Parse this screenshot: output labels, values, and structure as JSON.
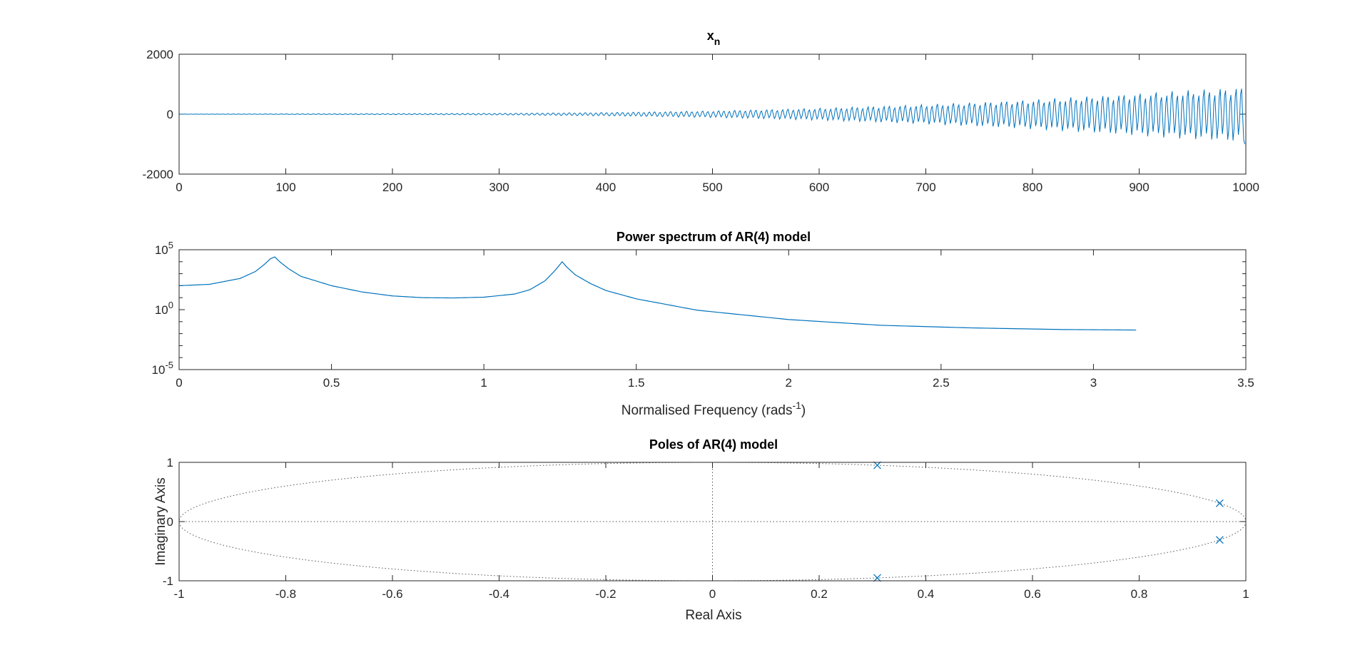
{
  "colors": {
    "series": "#0072bd",
    "axis": "#262626",
    "background": "#ffffff",
    "dotted": "#555555"
  },
  "chart_data": [
    {
      "type": "line",
      "title": "x",
      "title_subscript": "n",
      "xlabel": "",
      "ylabel": "",
      "xlim": [
        0,
        1000
      ],
      "ylim": [
        -2000,
        2000
      ],
      "xticks": [
        "0",
        "100",
        "200",
        "300",
        "400",
        "500",
        "600",
        "700",
        "800",
        "900",
        "1000"
      ],
      "yticks": [
        "-2000",
        "0",
        "2000"
      ],
      "series": [
        {
          "samples": 1000,
          "model": "damped-sinusoid-growing",
          "dominant_period_samples": 5,
          "envelope": {
            "x": [
              0,
              100,
              200,
              300,
              400,
              500,
              600,
              700,
              800,
              900,
              1000
            ],
            "amplitude": [
              3,
              8,
              15,
              25,
              50,
              100,
              180,
              300,
              450,
              650,
              850
            ]
          },
          "end_value": -1000
        }
      ],
      "grid": false
    },
    {
      "type": "line",
      "title": "Power spectrum of AR(4) model",
      "xlabel": "Normalised Frequency (rads",
      "xlabel_superscript": "-1",
      "xlabel_suffix": ")",
      "ylabel": "",
      "xlim": [
        0,
        3.5
      ],
      "ylim": [
        1e-05,
        100000.0
      ],
      "yscale": "log",
      "xticks": [
        "0",
        "0.5",
        "1",
        "1.5",
        "2",
        "2.5",
        "3",
        "3.5"
      ],
      "yticks": [
        {
          "base": "10",
          "exp": "5"
        },
        {
          "base": "10",
          "exp": "0"
        },
        {
          "base": "10",
          "exp": "-5"
        }
      ],
      "series": [
        {
          "x": [
            0,
            0.1,
            0.2,
            0.25,
            0.28,
            0.3,
            0.314,
            0.33,
            0.36,
            0.4,
            0.5,
            0.6,
            0.7,
            0.8,
            0.9,
            1.0,
            1.1,
            1.15,
            1.2,
            1.23,
            1.25,
            1.257,
            1.27,
            1.3,
            1.35,
            1.4,
            1.5,
            1.7,
            2.0,
            2.3,
            2.6,
            2.9,
            3.14
          ],
          "y": [
            100,
            130,
            400,
            1500,
            6000,
            18000,
            25000,
            10000,
            2500,
            600,
            100,
            30,
            14,
            10,
            9.5,
            11,
            20,
            45,
            250,
            1500,
            6000,
            10000,
            4000,
            800,
            150,
            40,
            8,
            0.9,
            0.15,
            0.05,
            0.03,
            0.022,
            0.02
          ]
        }
      ],
      "grid": false
    },
    {
      "type": "scatter",
      "title": "Poles of AR(4) model",
      "xlabel": "Real Axis",
      "ylabel": "Imaginary Axis",
      "xlim": [
        -1,
        1
      ],
      "ylim": [
        -1,
        1
      ],
      "xticks": [
        "-1",
        "-0.8",
        "-0.6",
        "-0.4",
        "-0.2",
        "0",
        "0.2",
        "0.4",
        "0.6",
        "0.8",
        "1"
      ],
      "yticks": [
        "-1",
        "0",
        "1"
      ],
      "marker": "x",
      "unit_circle": true,
      "series": [
        {
          "x": [
            0.309,
            0.309,
            0.951,
            0.951
          ],
          "y": [
            0.951,
            -0.951,
            0.309,
            -0.309
          ]
        }
      ],
      "grid": false
    }
  ]
}
